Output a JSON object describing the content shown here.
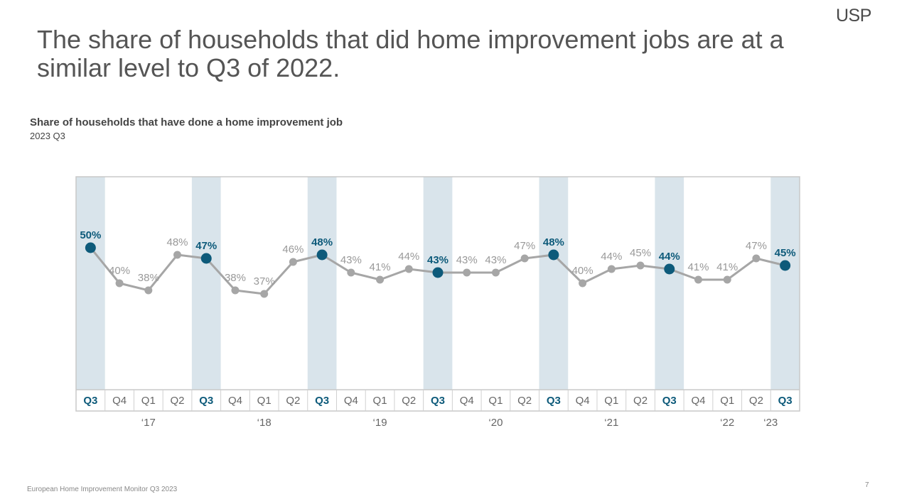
{
  "brand": {
    "logo_text": "USP"
  },
  "headline": "The share of households that did home improvement jobs are at a similar level to Q3 of 2022.",
  "chart_title": "Share of households that have done a home improvement job",
  "chart_subtitle": "2023 Q3",
  "footer": {
    "source": "European Home Improvement Monitor Q3 2023",
    "page": "7"
  },
  "colors": {
    "highlight": "#0d5a7a",
    "normal": "#a6a6a6",
    "band": "#d9e4eb",
    "text_normal": "#999999"
  },
  "chart_data": {
    "type": "line",
    "title": "Share of households that have done a home improvement job",
    "subtitle": "2023 Q3",
    "categories": [
      "Q3",
      "Q4",
      "Q1",
      "Q2",
      "Q3",
      "Q4",
      "Q1",
      "Q2",
      "Q3",
      "Q4",
      "Q1",
      "Q2",
      "Q3",
      "Q4",
      "Q1",
      "Q2",
      "Q3",
      "Q4",
      "Q1",
      "Q2",
      "Q3",
      "Q4",
      "Q1",
      "Q2",
      "Q3"
    ],
    "year_labels": [
      "‘17",
      "‘18",
      "‘19",
      "‘20",
      "‘21",
      "‘22",
      "‘23"
    ],
    "series": [
      {
        "values": [
          50,
          40,
          38,
          48,
          47,
          38,
          37,
          46,
          48,
          43,
          41,
          44,
          43,
          43,
          43,
          47,
          48,
          40,
          44,
          45,
          44,
          41,
          41,
          47,
          45
        ]
      }
    ],
    "value_labels": [
      "50%",
      "40%",
      "38%",
      "48%",
      "47%",
      "38%",
      "37%",
      "46%",
      "48%",
      "43%",
      "41%",
      "44%",
      "43%",
      "43%",
      "43%",
      "47%",
      "48%",
      "40%",
      "44%",
      "45%",
      "44%",
      "41%",
      "41%",
      "47%",
      "45%"
    ],
    "highlighted_category": "Q3",
    "ylim": [
      10,
      70
    ],
    "grid": false
  }
}
